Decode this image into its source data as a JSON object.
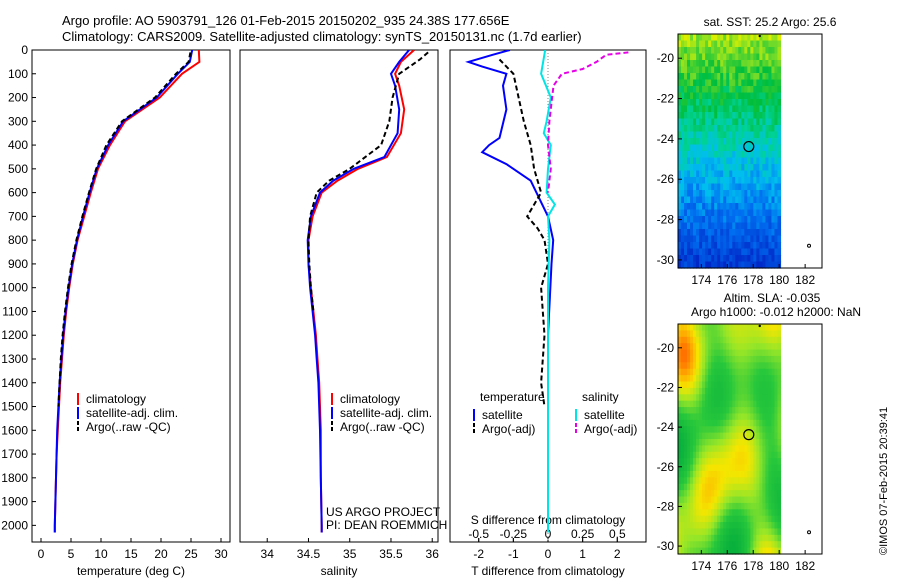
{
  "header": {
    "line1": "Argo profile: AO 5903791_126 01-Feb-2015 20150202_935 24.38S 177.656E",
    "line2": "Climatology: CARS2009. Satellite-adjusted climatology: synTS_20150131.nc (1.7d earlier)"
  },
  "colors": {
    "clim": "#ff0000",
    "sat": "#0000ff",
    "argo": "#000000",
    "sat_s": "#00e5e5",
    "argo_s": "#e600e6"
  },
  "chart_data": [
    {
      "type": "line",
      "xlabel": "temperature (deg C)",
      "ylim": [
        2070,
        0
      ],
      "xlim": [
        -1.5,
        31.5
      ],
      "xticks": [
        0,
        5,
        10,
        15,
        20,
        25,
        30
      ],
      "yticks": [
        0,
        100,
        200,
        300,
        400,
        500,
        600,
        700,
        800,
        900,
        1000,
        1100,
        1200,
        1300,
        1400,
        1500,
        1600,
        1700,
        1800,
        1900,
        2000
      ],
      "legend": [
        "climatology",
        "satellite-adj. clim.",
        "Argo(..raw -QC)"
      ],
      "legend_placement": "lower-center",
      "series": [
        {
          "name": "climatology",
          "style": "solid",
          "color": "#ff0000",
          "x": [
            26.3,
            26.4,
            23.5,
            19.8,
            14.0,
            11.5,
            9.5,
            8.3,
            7.2,
            6.1,
            5.3,
            4.7,
            4.2,
            3.8,
            3.5,
            3.2,
            3.0,
            2.8,
            2.6,
            2.5,
            2.4,
            2.3,
            2.3
          ],
          "y": [
            0,
            50,
            100,
            200,
            300,
            400,
            500,
            600,
            700,
            800,
            900,
            1000,
            1100,
            1200,
            1300,
            1400,
            1500,
            1600,
            1700,
            1800,
            1900,
            2000,
            2030
          ]
        },
        {
          "name": "satellite-adj. clim.",
          "style": "solid",
          "color": "#0000ff",
          "x": [
            25.2,
            24.8,
            22.8,
            19.3,
            13.7,
            11.2,
            9.3,
            8.1,
            7.0,
            6.0,
            5.2,
            4.6,
            4.1,
            3.7,
            3.4,
            3.1,
            2.9,
            2.7,
            2.6,
            2.5,
            2.4,
            2.3,
            2.3
          ],
          "y": [
            0,
            50,
            100,
            200,
            300,
            400,
            500,
            600,
            700,
            800,
            900,
            1000,
            1100,
            1200,
            1300,
            1400,
            1500,
            1600,
            1700,
            1800,
            1900,
            2000,
            2030
          ]
        },
        {
          "name": "Argo(..raw -QC)",
          "style": "dashed",
          "color": "#000000",
          "x": [
            24.9,
            24.6,
            22.5,
            19.0,
            13.5,
            10.9,
            9.2,
            8.0,
            6.9,
            5.9,
            5.1,
            4.5,
            4.0,
            3.6,
            3.3,
            3.1,
            2.9
          ],
          "y": [
            10,
            50,
            100,
            200,
            300,
            400,
            500,
            600,
            700,
            800,
            900,
            1000,
            1100,
            1200,
            1300,
            1400,
            1500
          ]
        }
      ]
    },
    {
      "type": "line",
      "xlabel": "salinity",
      "ylim": [
        2070,
        0
      ],
      "xlim": [
        33.67,
        36.07
      ],
      "xticks": [
        34,
        34.5,
        35,
        35.5,
        36
      ],
      "xticklabels": [
        "34",
        "34.5",
        "35",
        "35.5",
        "36"
      ],
      "legend": [
        "climatology",
        "satellite-adj. clim.",
        "Argo(..raw -QC)"
      ],
      "legend_placement": "lower-right",
      "annotations": [
        "US ARGO PROJECT",
        "PI: DEAN ROEMMICH"
      ],
      "series": [
        {
          "name": "climatology",
          "style": "solid",
          "color": "#ff0000",
          "x": [
            35.78,
            35.62,
            35.55,
            35.6,
            35.66,
            35.62,
            35.45,
            35.1,
            34.85,
            34.66,
            34.55,
            34.5,
            34.5,
            34.53,
            34.56,
            34.59,
            34.61,
            34.63,
            34.64,
            34.65,
            34.65,
            34.66,
            34.66
          ],
          "y": [
            0,
            50,
            100,
            150,
            250,
            350,
            450,
            500,
            550,
            600,
            700,
            800,
            900,
            1000,
            1100,
            1200,
            1300,
            1400,
            1500,
            1600,
            1800,
            2000,
            2030
          ]
        },
        {
          "name": "satellite-adj. clim.",
          "style": "solid",
          "color": "#0000ff",
          "x": [
            35.72,
            35.6,
            35.5,
            35.55,
            35.6,
            35.58,
            35.42,
            35.05,
            34.8,
            34.64,
            34.53,
            34.49,
            34.5,
            34.52,
            34.55,
            34.58,
            34.6,
            34.62,
            34.63,
            34.64,
            34.65,
            34.66,
            34.66
          ],
          "y": [
            0,
            50,
            100,
            150,
            250,
            350,
            450,
            500,
            550,
            600,
            700,
            800,
            900,
            1000,
            1100,
            1200,
            1300,
            1400,
            1500,
            1600,
            1800,
            2000,
            2030
          ]
        },
        {
          "name": "Argo(..raw -QC)",
          "style": "dashed",
          "color": "#000000",
          "x": [
            35.95,
            35.85,
            35.6,
            35.52,
            35.48,
            35.38,
            35.0,
            34.75,
            34.6,
            34.52,
            34.5,
            34.51,
            34.53,
            34.56
          ],
          "y": [
            10,
            40,
            100,
            200,
            300,
            400,
            500,
            550,
            600,
            700,
            800,
            900,
            1000,
            1100
          ]
        }
      ]
    },
    {
      "type": "line",
      "xlabel": "T difference from climatology",
      "x2label": "S difference from climatology",
      "ylim": [
        2070,
        0
      ],
      "xlim": [
        -2.83,
        2.83
      ],
      "xticks": [
        -2,
        -1,
        0,
        1,
        2
      ],
      "x2lim": [
        -0.707,
        0.707
      ],
      "x2ticks": [
        -0.5,
        -0.25,
        0,
        0.25,
        0.5
      ],
      "x2ticklabels": [
        "-0.5",
        "-0.25",
        "0",
        "0.25",
        "0.5"
      ],
      "legend": [
        {
          "group": "temperature",
          "items": [
            "satellite",
            "Argo(-adj)"
          ]
        },
        {
          "group": "salinity",
          "items": [
            "satellite",
            "Argo(-adj)"
          ]
        }
      ],
      "series": [
        {
          "name": "temperature satellite",
          "axis": "T",
          "style": "solid",
          "color": "#0000ff",
          "x": [
            -1.1,
            -1.6,
            -2.3,
            -1.9,
            -1.2,
            -1.3,
            -1.2,
            -1.4,
            -1.7,
            -1.9,
            -1.2,
            -0.5,
            0.0,
            0.15,
            0.1,
            0.0,
            0.0,
            0.0
          ],
          "y": [
            0,
            20,
            50,
            70,
            100,
            150,
            250,
            370,
            400,
            430,
            480,
            550,
            700,
            800,
            900,
            1200,
            1600,
            2030
          ]
        },
        {
          "name": "temperature Argo(-adj)",
          "axis": "T",
          "style": "dashed",
          "color": "#000000",
          "x": [
            -1.4,
            -1.0,
            -0.7,
            -0.5,
            -0.4,
            -0.2,
            -0.6,
            -0.3,
            -0.1,
            0.0,
            -0.2,
            -0.1,
            -0.2,
            -0.1
          ],
          "y": [
            40,
            100,
            300,
            400,
            500,
            600,
            700,
            750,
            800,
            900,
            1000,
            1200,
            1400,
            1500
          ]
        },
        {
          "name": "salinity satellite",
          "axis": "S",
          "style": "solid",
          "color": "#00e5e5",
          "x": [
            -0.02,
            -0.05,
            0.02,
            -0.01,
            -0.03,
            0.02,
            0.0,
            -0.01,
            0.05,
            0.0,
            0.01,
            0.0,
            0.0,
            0.0
          ],
          "y": [
            0,
            100,
            200,
            300,
            350,
            400,
            500,
            600,
            650,
            700,
            800,
            1000,
            1500,
            2030
          ]
        },
        {
          "name": "salinity Argo(-adj)",
          "axis": "S",
          "style": "dashed",
          "color": "#e600e6",
          "x": [
            0.58,
            0.42,
            0.35,
            0.25,
            0.1,
            0.04,
            0.01,
            0.0,
            0.02,
            0.0
          ],
          "y": [
            10,
            20,
            50,
            80,
            100,
            150,
            300,
            400,
            500,
            600
          ]
        }
      ]
    },
    {
      "type": "heatmap",
      "title": "sat. SST: 25.2 Argo: 25.6",
      "xlim": [
        172.2,
        183.3
      ],
      "ylim": [
        -30.4,
        -18.8
      ],
      "xticks": [
        174,
        176,
        178,
        180,
        182
      ],
      "yticks": [
        -20,
        -22,
        -24,
        -26,
        -28,
        -30
      ],
      "marker": {
        "lon": 177.656,
        "lat": -24.38
      }
    },
    {
      "type": "heatmap",
      "title": "Altim. SLA: -0.035",
      "subtitle": "Argo h1000: -0.012 h2000: NaN",
      "xlim": [
        172.2,
        183.3
      ],
      "ylim": [
        -30.4,
        -18.8
      ],
      "xticks": [
        174,
        176,
        178,
        180,
        182
      ],
      "yticks": [
        -20,
        -22,
        -24,
        -26,
        -28,
        -30
      ],
      "marker": {
        "lon": 177.656,
        "lat": -24.38
      }
    }
  ],
  "footer": {
    "copyright": "©IMOS 07-Feb-2015 20:39:41"
  }
}
